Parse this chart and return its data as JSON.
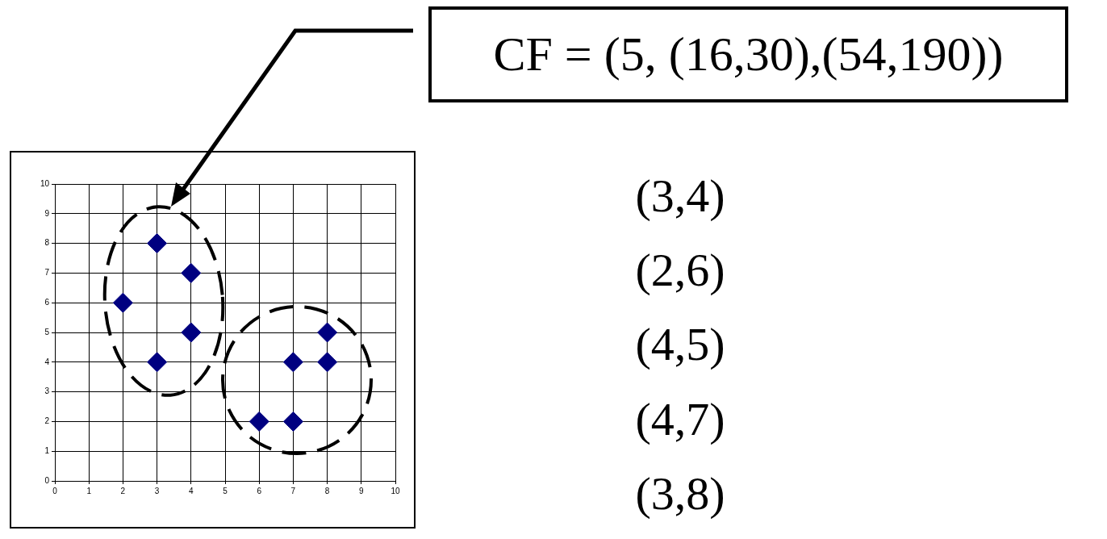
{
  "chart_data": {
    "type": "scatter",
    "x": [
      3,
      4,
      2,
      4,
      3,
      6,
      7,
      7,
      8,
      8
    ],
    "values": [
      8,
      7,
      6,
      5,
      4,
      2,
      2,
      4,
      4,
      5
    ],
    "color": "#000080",
    "marker": "diamond",
    "xlim": [
      0,
      10
    ],
    "ylim": [
      0,
      10
    ],
    "xticks": [
      0,
      1,
      2,
      3,
      4,
      5,
      6,
      7,
      8,
      9,
      10
    ],
    "yticks": [
      0,
      1,
      2,
      3,
      4,
      5,
      6,
      7,
      8,
      9,
      10
    ],
    "grid": true,
    "legend": false,
    "annotations": [
      "CF = (5, (16,30),(54,190))",
      "(3,4)",
      "(2,6)",
      "(4,5)",
      "(4,7)",
      "(3,8)"
    ]
  }
}
